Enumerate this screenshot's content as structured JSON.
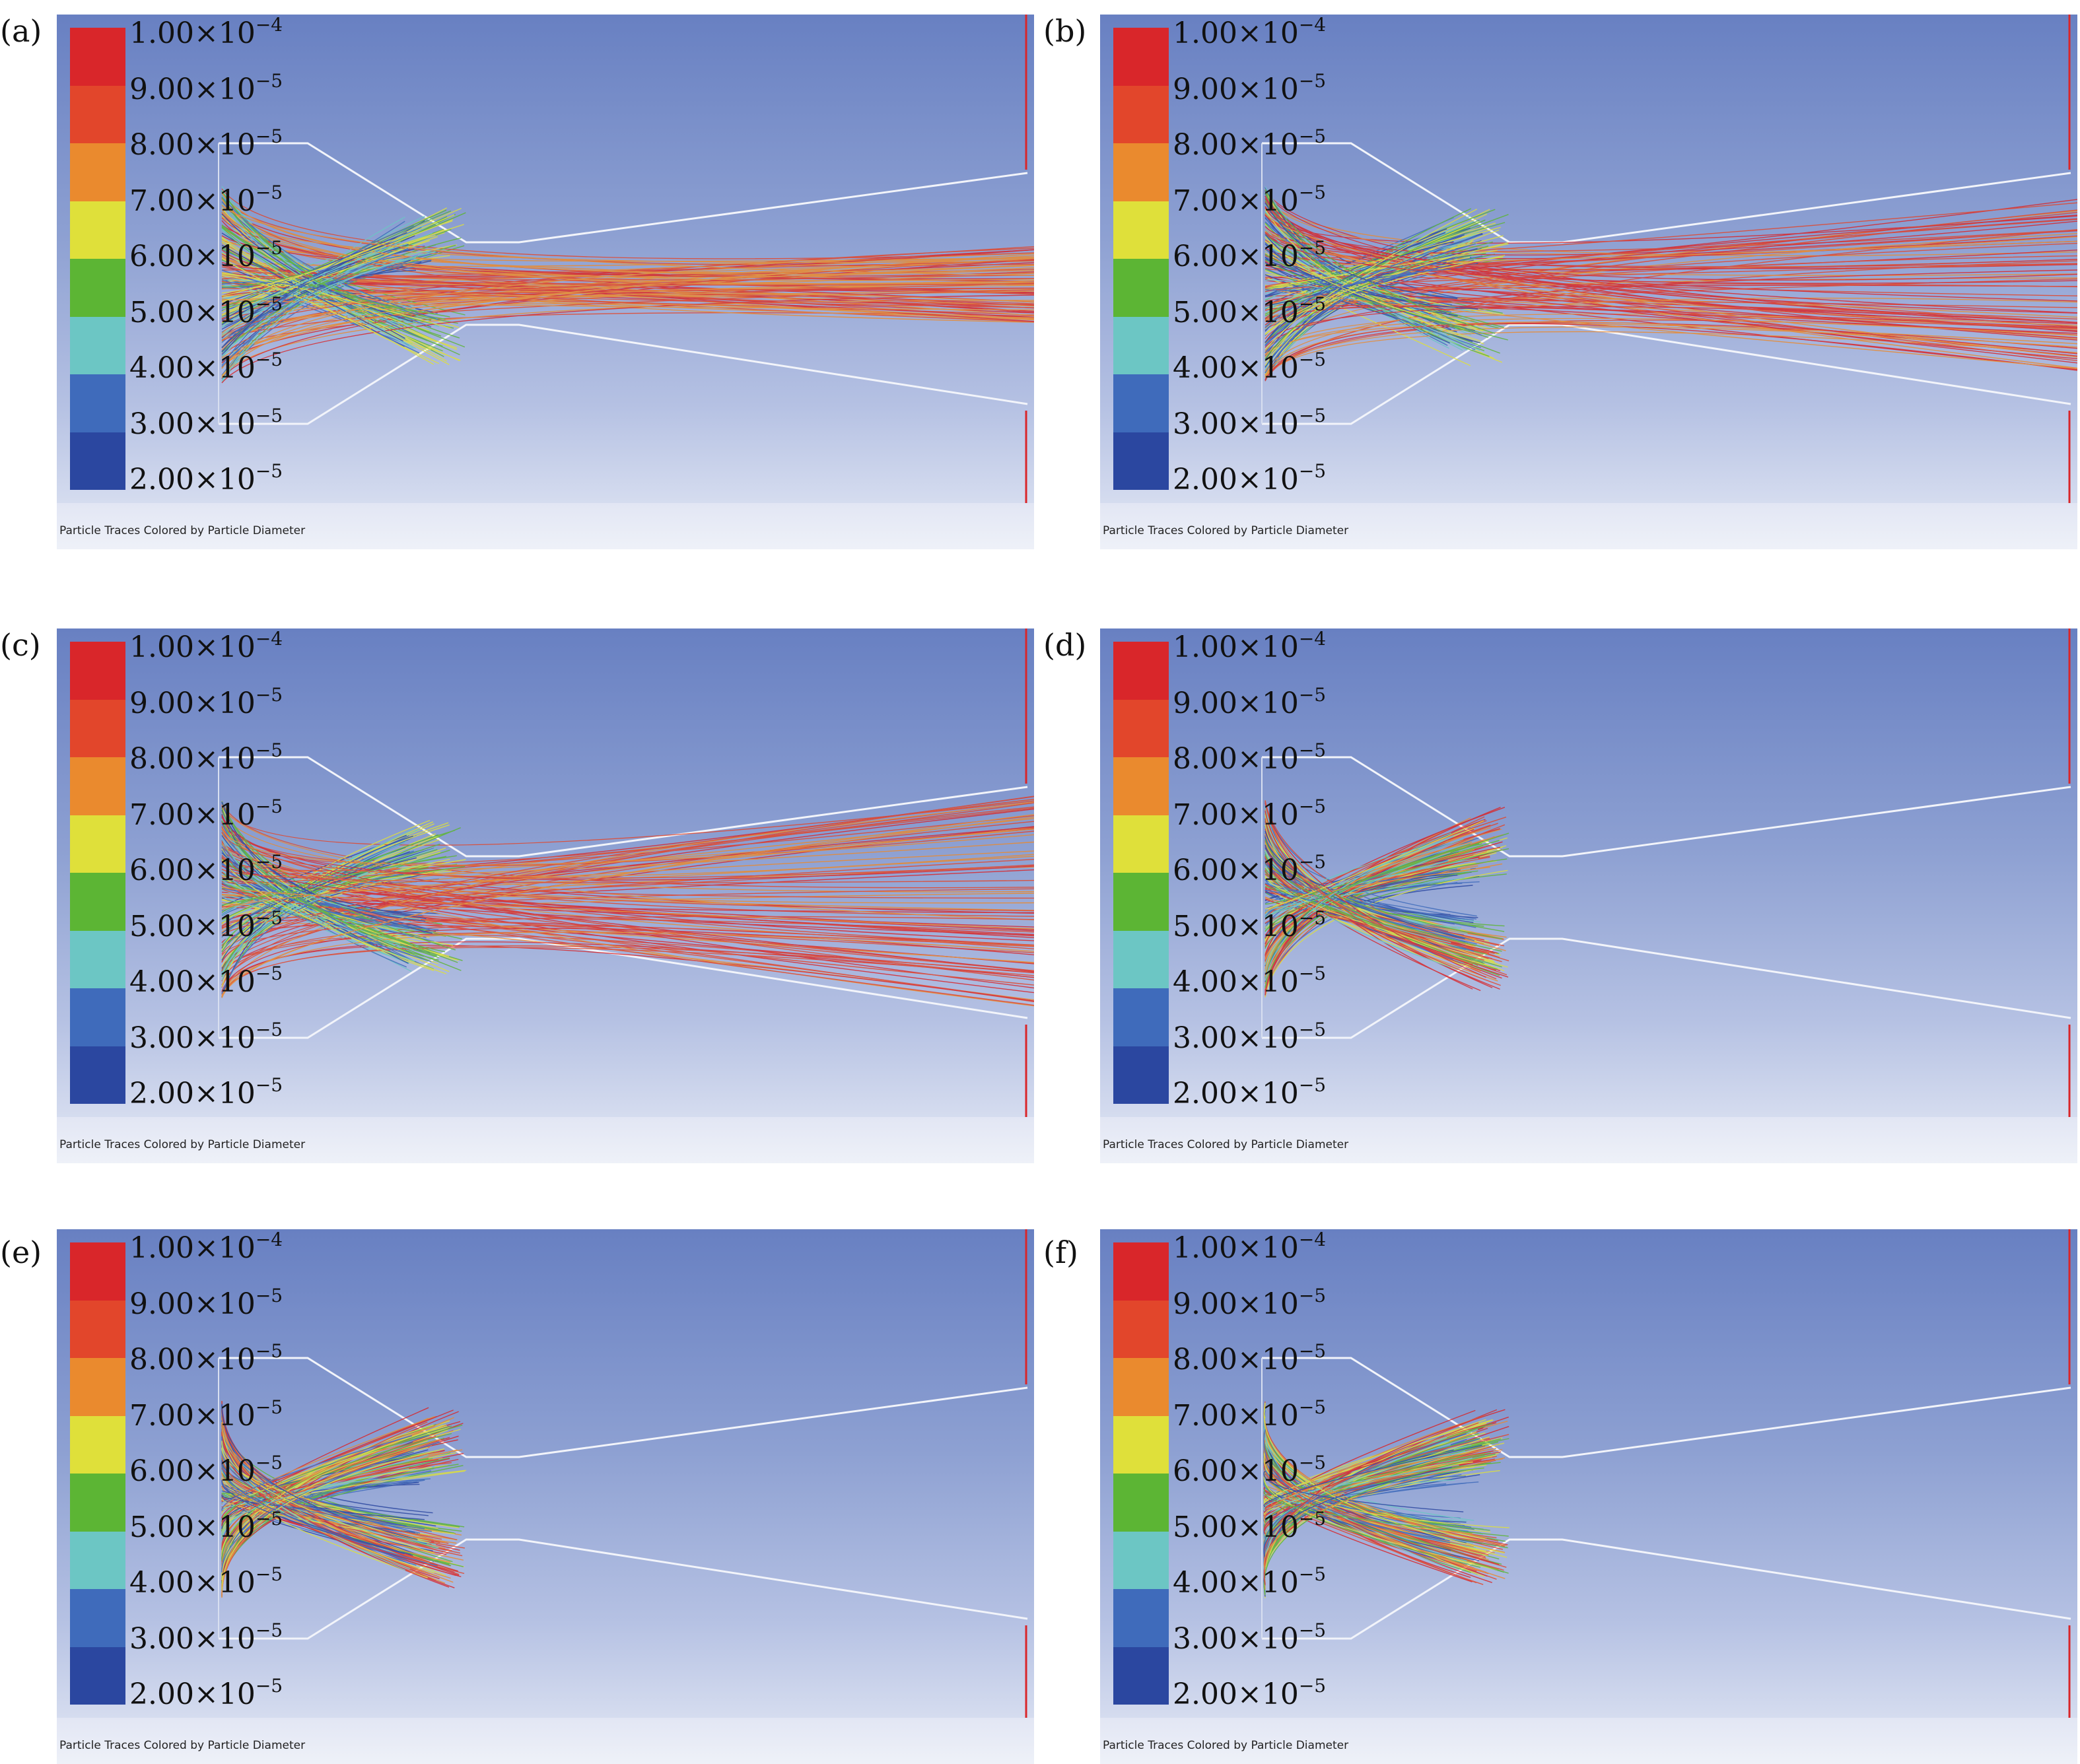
{
  "caption": "Particle Traces Colored by Particle Diameter",
  "legend": {
    "colors": [
      "#d9262a",
      "#e2462b",
      "#ea8a2e",
      "#dfe03a",
      "#5cb534",
      "#6cc6c4",
      "#3f6bbb",
      "#2b47a0"
    ],
    "ticks": [
      {
        "mantissa": "1.00×10",
        "exponent": "−4"
      },
      {
        "mantissa": "9.00×10",
        "exponent": "−5"
      },
      {
        "mantissa": "8.00×10",
        "exponent": "−5"
      },
      {
        "mantissa": "7.00×10",
        "exponent": "−5"
      },
      {
        "mantissa": "6.00×10",
        "exponent": "−5"
      },
      {
        "mantissa": "5.00×10",
        "exponent": "−5"
      },
      {
        "mantissa": "4.00×10",
        "exponent": "−5"
      },
      {
        "mantissa": "3.00×10",
        "exponent": "−5"
      },
      {
        "mantissa": "2.00×10",
        "exponent": "−5"
      }
    ]
  },
  "panels": [
    {
      "label": "(a)",
      "focus_spread": 0.85,
      "exit_spread": 0.45
    },
    {
      "label": "(b)",
      "focus_spread": 0.65,
      "exit_spread": 1.0
    },
    {
      "label": "(c)",
      "focus_spread": 0.5,
      "exit_spread": 1.25
    },
    {
      "label": "(d)",
      "focus_spread": 0.35,
      "exit_spread": 0.0
    },
    {
      "label": "(e)",
      "focus_spread": 0.15,
      "exit_spread": 0.0
    },
    {
      "label": "(f)",
      "focus_spread": 0.1,
      "exit_spread": 0.0
    }
  ]
}
